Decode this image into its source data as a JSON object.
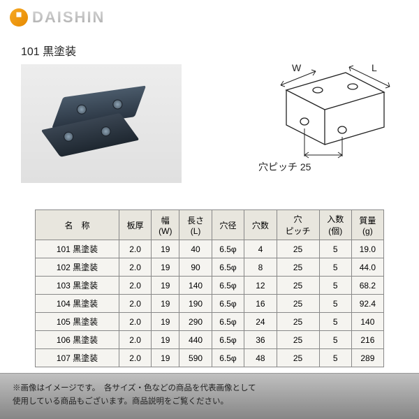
{
  "watermark": "DAISHIN",
  "product": {
    "label": "101 黒塗装"
  },
  "schematic": {
    "width_label": "W",
    "length_label": "L",
    "pitch_label": "穴ピッチ 25"
  },
  "table": {
    "headers": [
      "名　称",
      "板厚",
      "幅\n(W)",
      "長さ\n(L)",
      "穴径",
      "穴数",
      "穴\nピッチ",
      "入数\n(個)",
      "質量\n(g)"
    ],
    "rows": [
      [
        "101 黒塗装",
        "2.0",
        "19",
        "40",
        "6.5φ",
        "4",
        "25",
        "5",
        "19.0"
      ],
      [
        "102 黒塗装",
        "2.0",
        "19",
        "90",
        "6.5φ",
        "8",
        "25",
        "5",
        "44.0"
      ],
      [
        "103 黒塗装",
        "2.0",
        "19",
        "140",
        "6.5φ",
        "12",
        "25",
        "5",
        "68.2"
      ],
      [
        "104 黒塗装",
        "2.0",
        "19",
        "190",
        "6.5φ",
        "16",
        "25",
        "5",
        "92.4"
      ],
      [
        "105 黒塗装",
        "2.0",
        "19",
        "290",
        "6.5φ",
        "24",
        "25",
        "5",
        "140"
      ],
      [
        "106 黒塗装",
        "2.0",
        "19",
        "440",
        "6.5φ",
        "36",
        "25",
        "5",
        "216"
      ],
      [
        "107 黒塗装",
        "2.0",
        "19",
        "590",
        "6.5φ",
        "48",
        "25",
        "5",
        "289"
      ]
    ]
  },
  "footer": {
    "line1": "※画像はイメージです。　各サイズ・色などの商品を代表画像として",
    "line2": "使用している商品もございます。商品説明をご覧ください。"
  },
  "colors": {
    "page_bg": "#ffffff",
    "table_border": "#888888",
    "table_header_bg": "#e8e6de",
    "table_cell_bg": "#f5f4f0",
    "footer_grad_top": "#c0c0c0",
    "footer_grad_bot": "#868686",
    "watermark_grad_top": "#d8d8d8",
    "watermark_grad_bot": "#aaaaaa",
    "bracket_dark": "#2a3542",
    "bracket_light": "#4a5a6a"
  }
}
